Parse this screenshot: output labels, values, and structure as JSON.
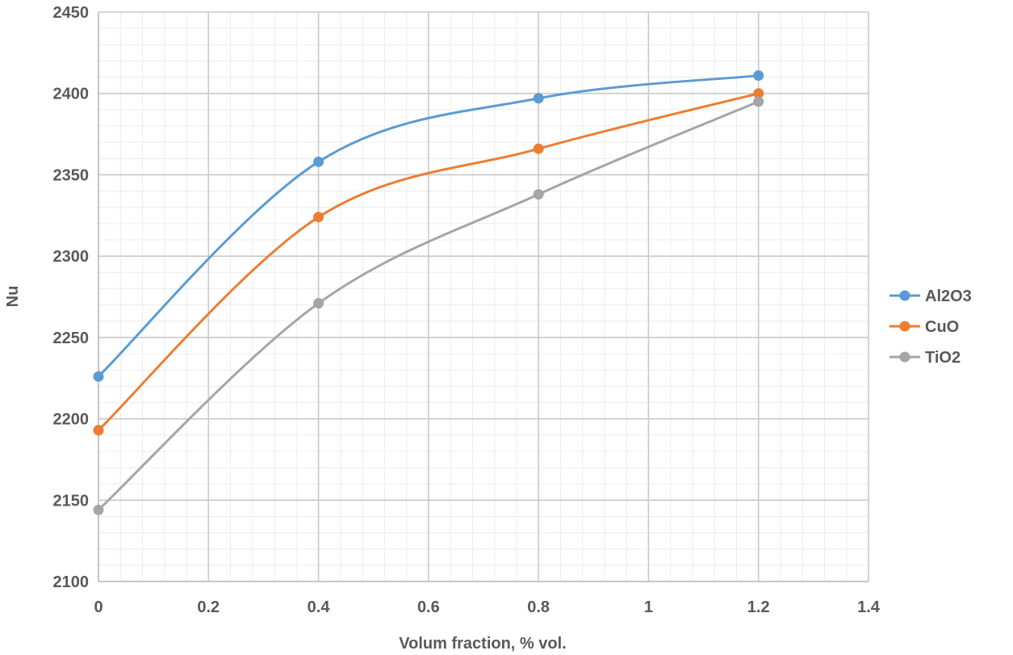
{
  "chart_data": {
    "type": "line",
    "title": "",
    "xlabel": "Volum fraction, % vol.",
    "ylabel": "Nu",
    "xlim": [
      0,
      1.4
    ],
    "ylim": [
      2100,
      2450
    ],
    "x_ticks": [
      0,
      0.2,
      0.4,
      0.6,
      0.8,
      1,
      1.2,
      1.4
    ],
    "x_tick_labels": [
      "0",
      "0.2",
      "0.4",
      "0.6",
      "0.8",
      "1",
      "1.2",
      "1.4"
    ],
    "y_ticks": [
      2100,
      2150,
      2200,
      2250,
      2300,
      2350,
      2400,
      2450
    ],
    "y_tick_labels": [
      "2100",
      "2150",
      "2200",
      "2250",
      "2300",
      "2350",
      "2400",
      "2450"
    ],
    "x_minor_step": 0.04,
    "y_minor_step": 10,
    "grid": true,
    "legend_position": "right",
    "smooth": true,
    "x": [
      0,
      0.4,
      0.8,
      1.2
    ],
    "series": [
      {
        "name": "Al2O3",
        "color": "#5B9BD5",
        "values": [
          2226,
          2358,
          2397,
          2411
        ]
      },
      {
        "name": "CuO",
        "color": "#ED7D31",
        "values": [
          2193,
          2324,
          2366,
          2400
        ]
      },
      {
        "name": "TiO2",
        "color": "#A5A5A5",
        "values": [
          2144,
          2271,
          2338,
          2395
        ]
      }
    ]
  }
}
